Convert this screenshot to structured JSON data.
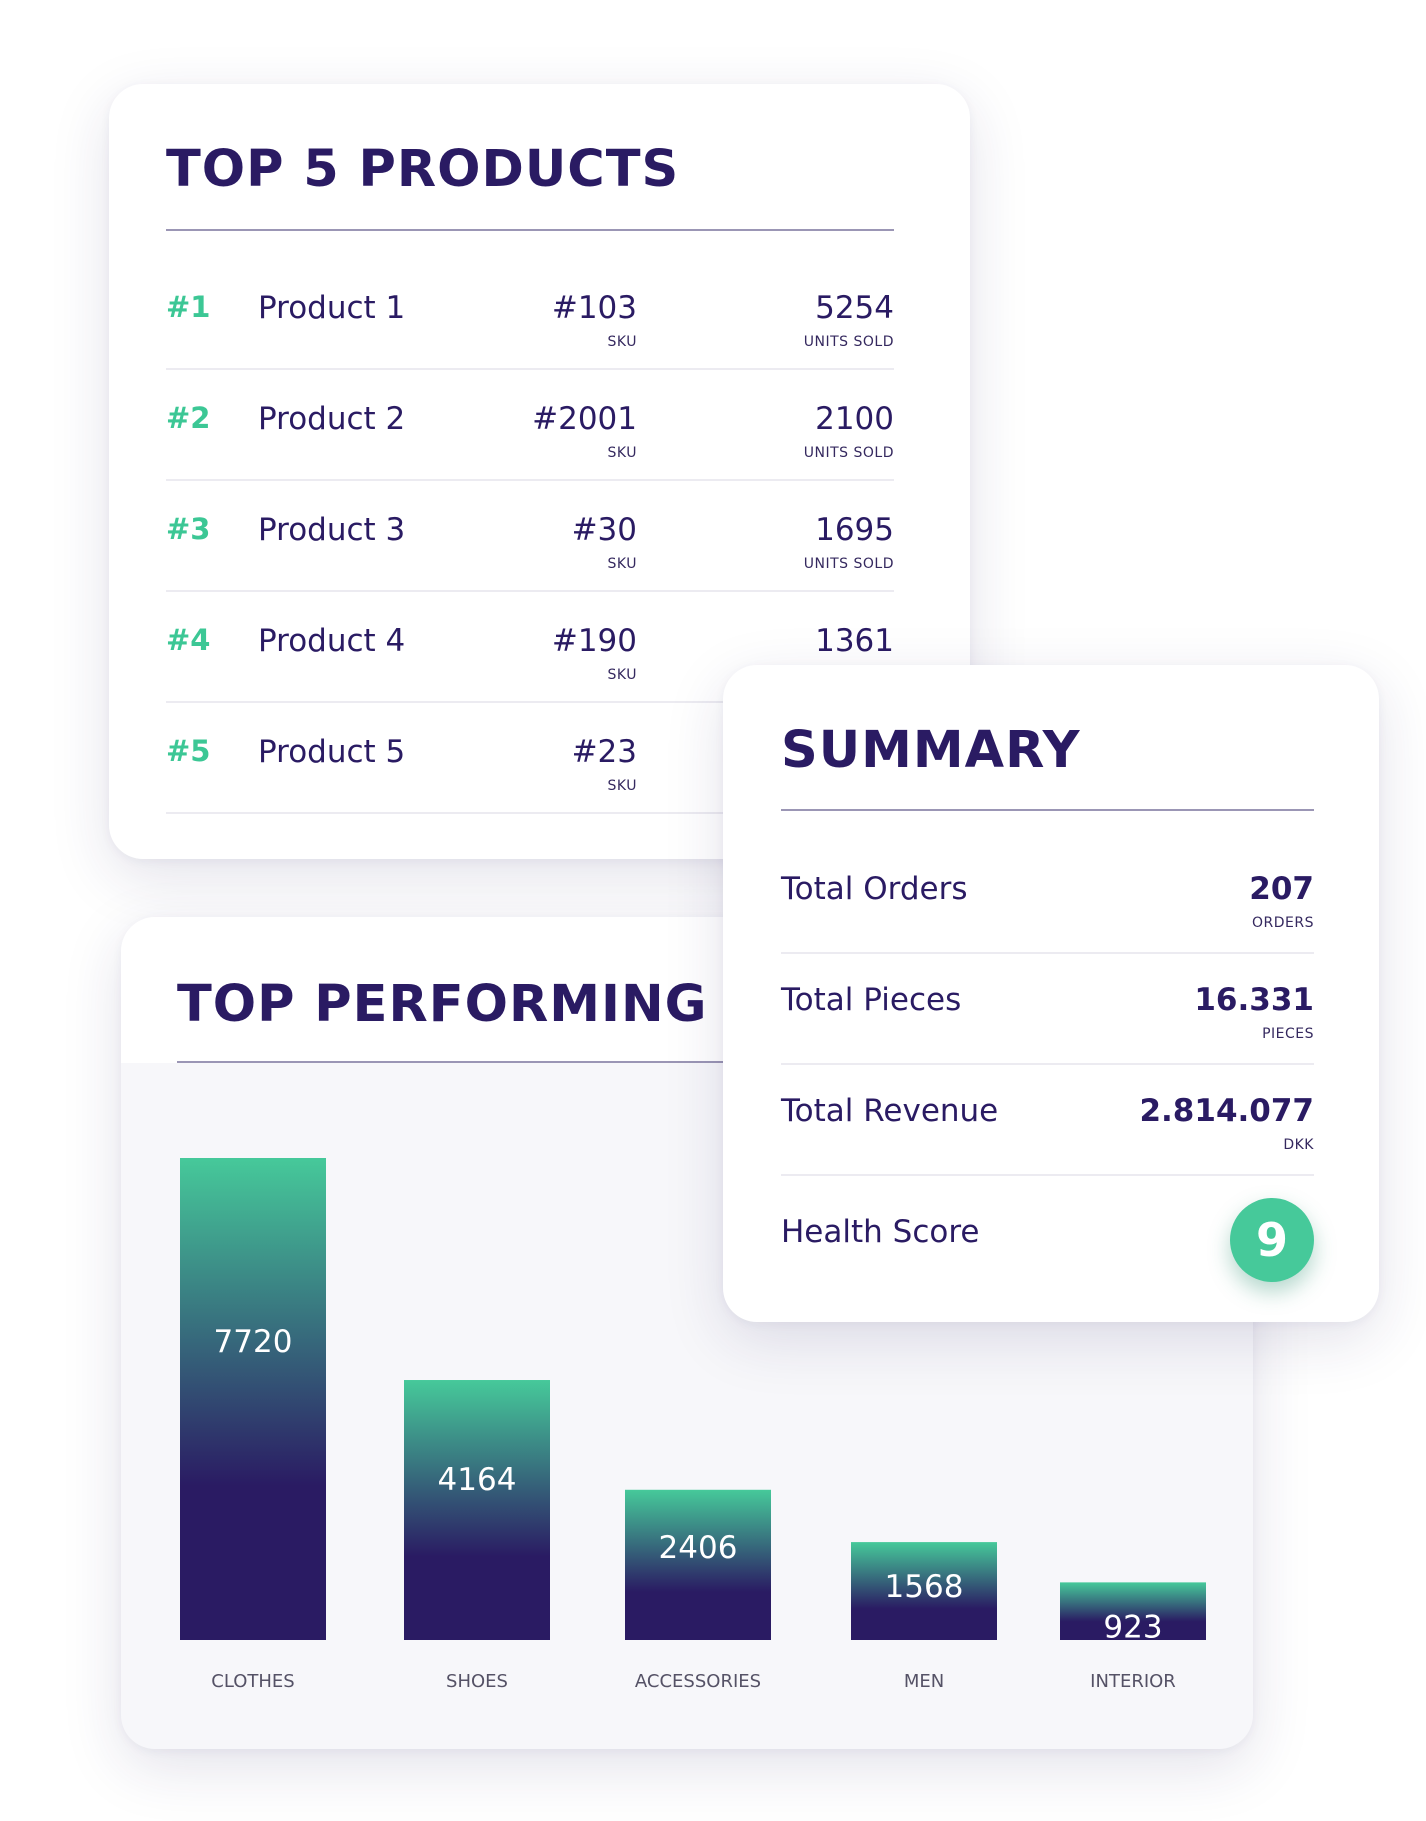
{
  "top_products": {
    "title": "TOP 5 PRODUCTS",
    "sku_caption": "SKU",
    "units_caption": "UNITS SOLD",
    "rows": [
      {
        "rank": "#1",
        "name": "Product 1",
        "sku": "#103",
        "units": "5254"
      },
      {
        "rank": "#2",
        "name": "Product 2",
        "sku": "#2001",
        "units": "2100"
      },
      {
        "rank": "#3",
        "name": "Product 3",
        "sku": "#30",
        "units": "1695"
      },
      {
        "rank": "#4",
        "name": "Product 4",
        "sku": "#190",
        "units": "1361"
      },
      {
        "rank": "#5",
        "name": "Product 5",
        "sku": "#23",
        "units": ""
      }
    ]
  },
  "categories": {
    "title": "TOP PERFORMING CATEGORIES"
  },
  "chart_data": {
    "type": "bar",
    "categories": [
      "CLOTHES",
      "SHOES",
      "ACCESSORIES",
      "MEN",
      "INTERIOR"
    ],
    "values": [
      7720,
      4164,
      2406,
      1568,
      923
    ],
    "xlabel": "",
    "ylabel": "",
    "ylim": [
      0,
      7720
    ],
    "grid": false,
    "colors": {
      "top": "#46c99a",
      "bottom": "#2a1b63",
      "label": "#ffffff",
      "category_label": "#555266"
    }
  },
  "summary": {
    "title": "SUMMARY",
    "total_orders": {
      "label": "Total Orders",
      "value": "207",
      "caption": "ORDERS"
    },
    "total_pieces": {
      "label": "Total Pieces",
      "value": "16.331",
      "caption": "PIECES"
    },
    "total_revenue": {
      "label": "Total Revenue",
      "value": "2.814.077",
      "caption": "DKK"
    },
    "health_score": {
      "label": "Health Score",
      "value": "9"
    }
  },
  "colors": {
    "text_primary": "#2a1b63",
    "accent_green": "#3cc795",
    "rule": "#9b96b5",
    "card_bg": "#ffffff"
  }
}
